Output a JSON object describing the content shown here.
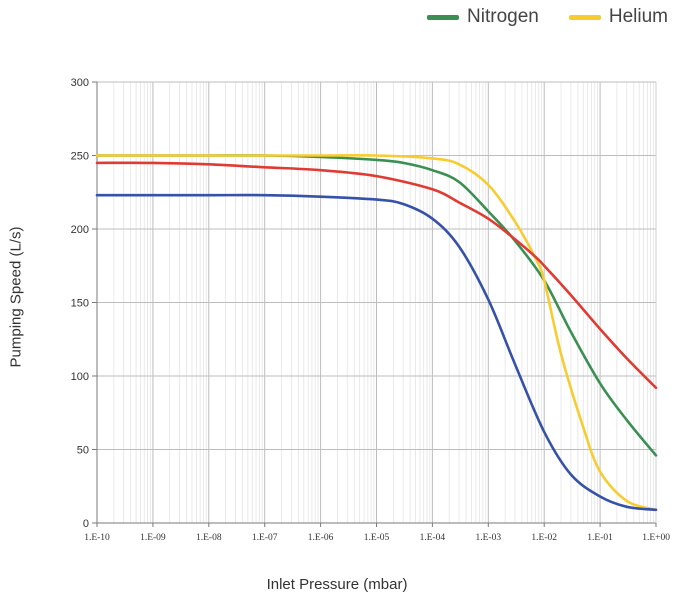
{
  "chart_data": {
    "type": "line",
    "xlabel": "Inlet Pressure (mbar)",
    "ylabel": "Pumping Speed (L/s)",
    "x_scale": "log",
    "xlim": [
      1e-10,
      1
    ],
    "ylim": [
      0,
      300
    ],
    "x_ticks": [
      1e-10,
      1e-09,
      1e-08,
      1e-07,
      1e-06,
      1e-05,
      0.0001,
      0.001,
      0.01,
      0.1,
      1
    ],
    "x_tick_labels": [
      "1.E-10",
      "1.E-09",
      "1.E-08",
      "1.E-07",
      "1.E-06",
      "1.E-05",
      "1.E-04",
      "1.E-03",
      "1.E-02",
      "1.E-01",
      "1.E+00"
    ],
    "y_ticks": [
      0,
      50,
      100,
      150,
      200,
      250,
      300
    ],
    "y_tick_labels": [
      "0",
      "50",
      "100",
      "150",
      "200",
      "250",
      "300"
    ],
    "grid": true,
    "legend_position": "top-right",
    "series": [
      {
        "name": "Nitrogen",
        "color": "#3a8f53",
        "x": [
          1e-10,
          1e-09,
          1e-08,
          1e-07,
          1e-06,
          1e-05,
          3e-05,
          0.0001,
          0.0003,
          0.001,
          0.003,
          0.01,
          0.03,
          0.1,
          0.3,
          1
        ],
        "y": [
          250,
          250,
          250,
          250,
          249,
          247,
          245,
          240,
          232,
          212,
          192,
          165,
          130,
          95,
          70,
          46
        ]
      },
      {
        "name": "Helium",
        "color": "#f7cc31",
        "x": [
          1e-10,
          1e-09,
          1e-08,
          1e-07,
          1e-06,
          1e-05,
          0.0001,
          0.0003,
          0.001,
          0.003,
          0.007,
          0.01,
          0.02,
          0.05,
          0.1,
          0.3,
          1
        ],
        "y": [
          250,
          250,
          250,
          250,
          250,
          250,
          248,
          244,
          230,
          205,
          180,
          165,
          115,
          65,
          35,
          15,
          9
        ]
      },
      {
        "color": "#e03b32",
        "x": [
          1e-10,
          1e-09,
          1e-08,
          1e-07,
          1e-06,
          1e-05,
          0.0001,
          0.0003,
          0.001,
          0.003,
          0.007,
          0.01,
          0.03,
          0.1,
          0.3,
          1
        ],
        "y": [
          245,
          245,
          244,
          242,
          240,
          236,
          227,
          218,
          207,
          193,
          181,
          175,
          155,
          132,
          112,
          92
        ]
      },
      {
        "color": "#3651a8",
        "x": [
          1e-10,
          1e-09,
          1e-08,
          1e-07,
          1e-06,
          1e-05,
          3e-05,
          0.0001,
          0.0003,
          0.001,
          0.003,
          0.01,
          0.03,
          0.1,
          0.3,
          1
        ],
        "y": [
          223,
          223,
          223,
          223,
          222,
          220,
          217,
          207,
          188,
          152,
          108,
          62,
          33,
          18,
          11,
          9
        ]
      }
    ]
  }
}
